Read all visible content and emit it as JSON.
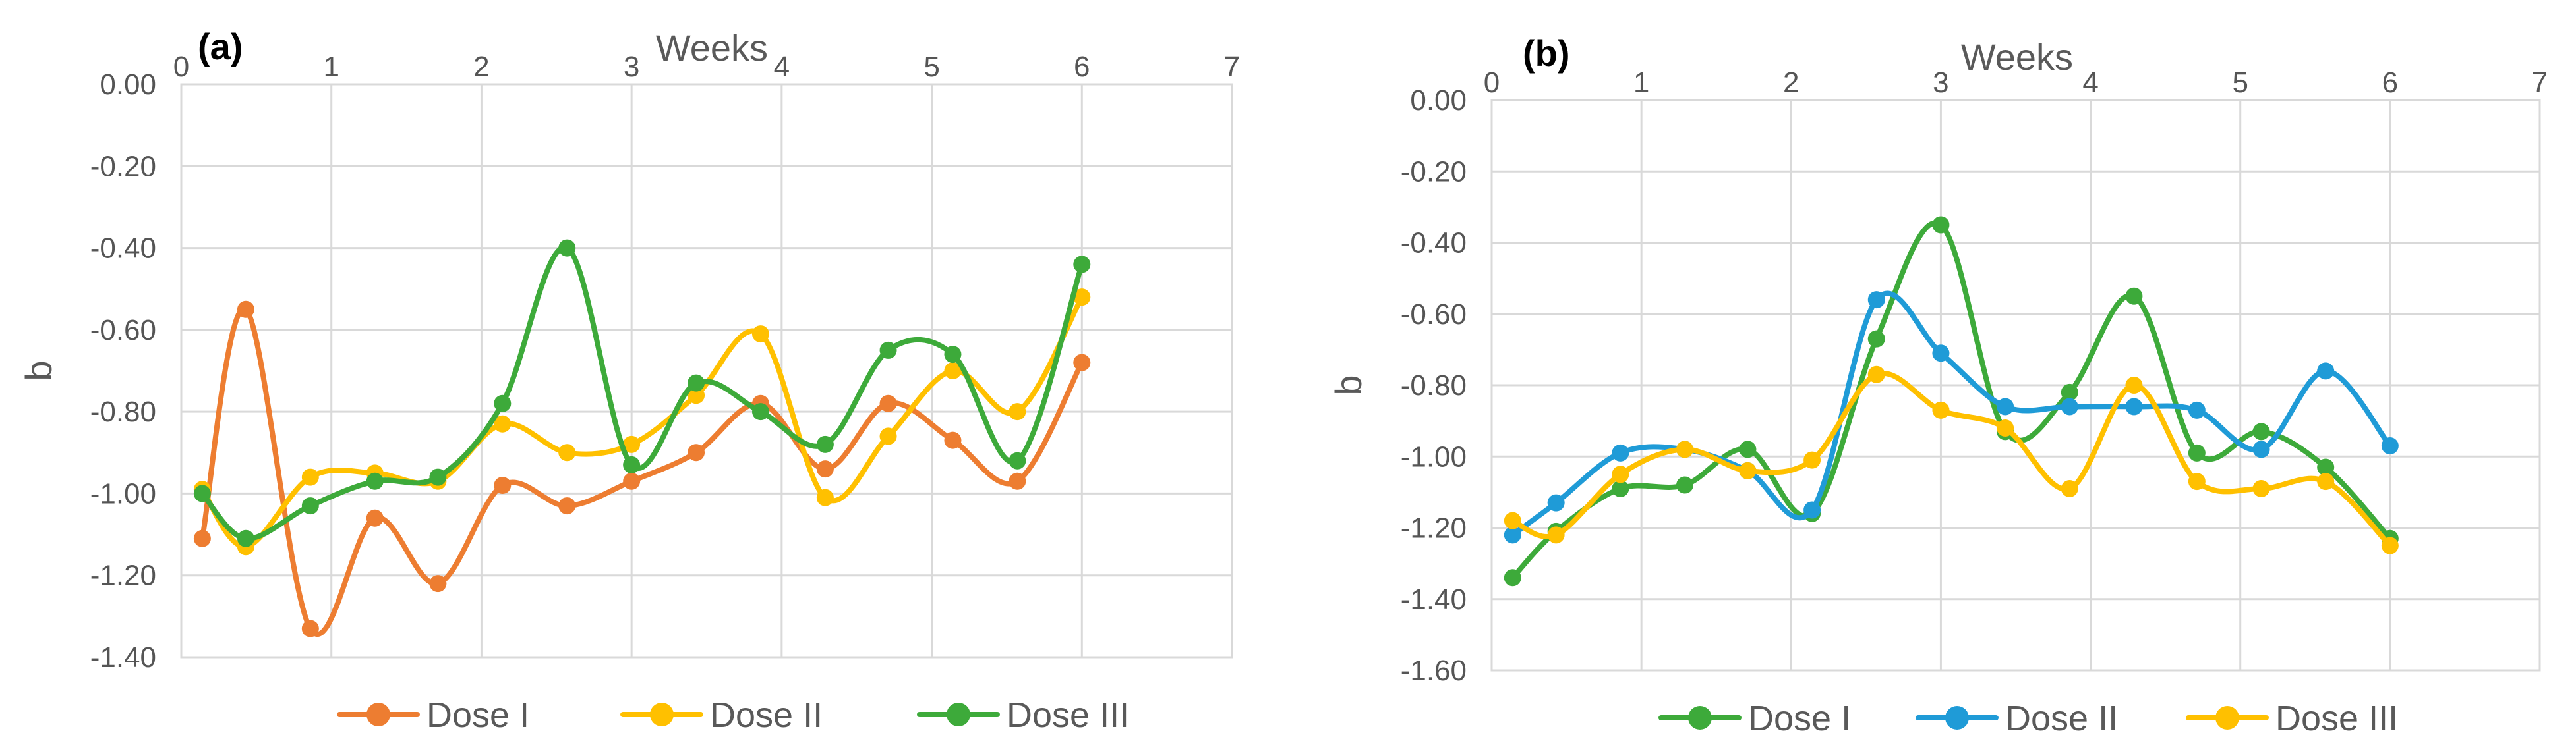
{
  "chart_data": [
    {
      "type": "line",
      "panel_label": "(a)",
      "title": "Weeks",
      "xlabel": "Weeks",
      "ylabel": "b",
      "xlim": [
        0,
        7
      ],
      "ylim": [
        -1.4,
        0
      ],
      "xticks": [
        0,
        1,
        2,
        3,
        4,
        5,
        6,
        7
      ],
      "yticks": [
        0,
        -0.2,
        -0.4,
        -0.6,
        -0.8,
        -1.0,
        -1.2,
        -1.4
      ],
      "ytick_labels": [
        "0.00",
        "-0.20",
        "-0.40",
        "-0.60",
        "-0.80",
        "-1.00",
        "-1.20",
        "-1.40"
      ],
      "x": [
        0.14,
        0.43,
        0.86,
        1.29,
        1.71,
        2.14,
        2.57,
        3.0,
        3.43,
        3.86,
        4.29,
        4.71,
        5.14,
        5.57,
        6.0
      ],
      "series": [
        {
          "name": "Dose I",
          "color": "#ED7D31",
          "values": [
            -1.11,
            -0.55,
            -1.33,
            -1.06,
            -1.22,
            -0.98,
            -1.03,
            -0.97,
            -0.9,
            -0.78,
            -0.94,
            -0.78,
            -0.87,
            -0.97,
            -0.68
          ]
        },
        {
          "name": "Dose II",
          "color": "#FFC000",
          "values": [
            -0.99,
            -1.13,
            -0.96,
            -0.95,
            -0.97,
            -0.83,
            -0.9,
            -0.88,
            -0.76,
            -0.61,
            -1.01,
            -0.86,
            -0.7,
            -0.8,
            -0.52
          ]
        },
        {
          "name": "Dose III",
          "color": "#3DAA3A",
          "values": [
            -1.0,
            -1.11,
            -1.03,
            -0.97,
            -0.96,
            -0.78,
            -0.4,
            -0.93,
            -0.73,
            -0.8,
            -0.88,
            -0.65,
            -0.66,
            -0.92,
            -0.44
          ]
        }
      ],
      "legend": [
        "Dose I",
        "Dose II",
        "Dose III"
      ],
      "legend_position": "bottom"
    },
    {
      "type": "line",
      "panel_label": "(b)",
      "title": "Weeks",
      "xlabel": "Weeks",
      "ylabel": "b",
      "xlim": [
        0,
        7
      ],
      "ylim": [
        -1.6,
        0
      ],
      "xticks": [
        0,
        1,
        2,
        3,
        4,
        5,
        6,
        7
      ],
      "yticks": [
        0,
        -0.2,
        -0.4,
        -0.6,
        -0.8,
        -1.0,
        -1.2,
        -1.4,
        -1.6
      ],
      "ytick_labels": [
        "0.00",
        "-0.20",
        "-0.40",
        "-0.60",
        "-0.80",
        "-1.00",
        "-1.20",
        "-1.40",
        "-1.60"
      ],
      "x": [
        0.14,
        0.43,
        0.86,
        1.29,
        1.71,
        2.14,
        2.57,
        3.0,
        3.43,
        3.86,
        4.29,
        4.71,
        5.14,
        5.57,
        6.0
      ],
      "series": [
        {
          "name": "Dose I",
          "color": "#3DAA3A",
          "values": [
            -1.34,
            -1.21,
            -1.09,
            -1.08,
            -0.98,
            -1.16,
            -0.67,
            -0.35,
            -0.93,
            -0.82,
            -0.55,
            -0.99,
            -0.93,
            -1.03,
            -1.23
          ]
        },
        {
          "name": "Dose II",
          "color": "#1F9BD7",
          "values": [
            -1.22,
            -1.13,
            -0.99,
            -0.98,
            -1.04,
            -1.15,
            -0.56,
            -0.71,
            -0.86,
            -0.86,
            -0.86,
            -0.87,
            -0.98,
            -0.76,
            -0.97
          ]
        },
        {
          "name": "Dose III",
          "color": "#FFC000",
          "values": [
            -1.18,
            -1.22,
            -1.05,
            -0.98,
            -1.04,
            -1.01,
            -0.77,
            -0.87,
            -0.92,
            -1.09,
            -0.8,
            -1.07,
            -1.09,
            -1.07,
            -1.25
          ]
        }
      ],
      "legend": [
        "Dose I",
        "Dose II",
        "Dose III"
      ],
      "legend_position": "bottom"
    }
  ]
}
